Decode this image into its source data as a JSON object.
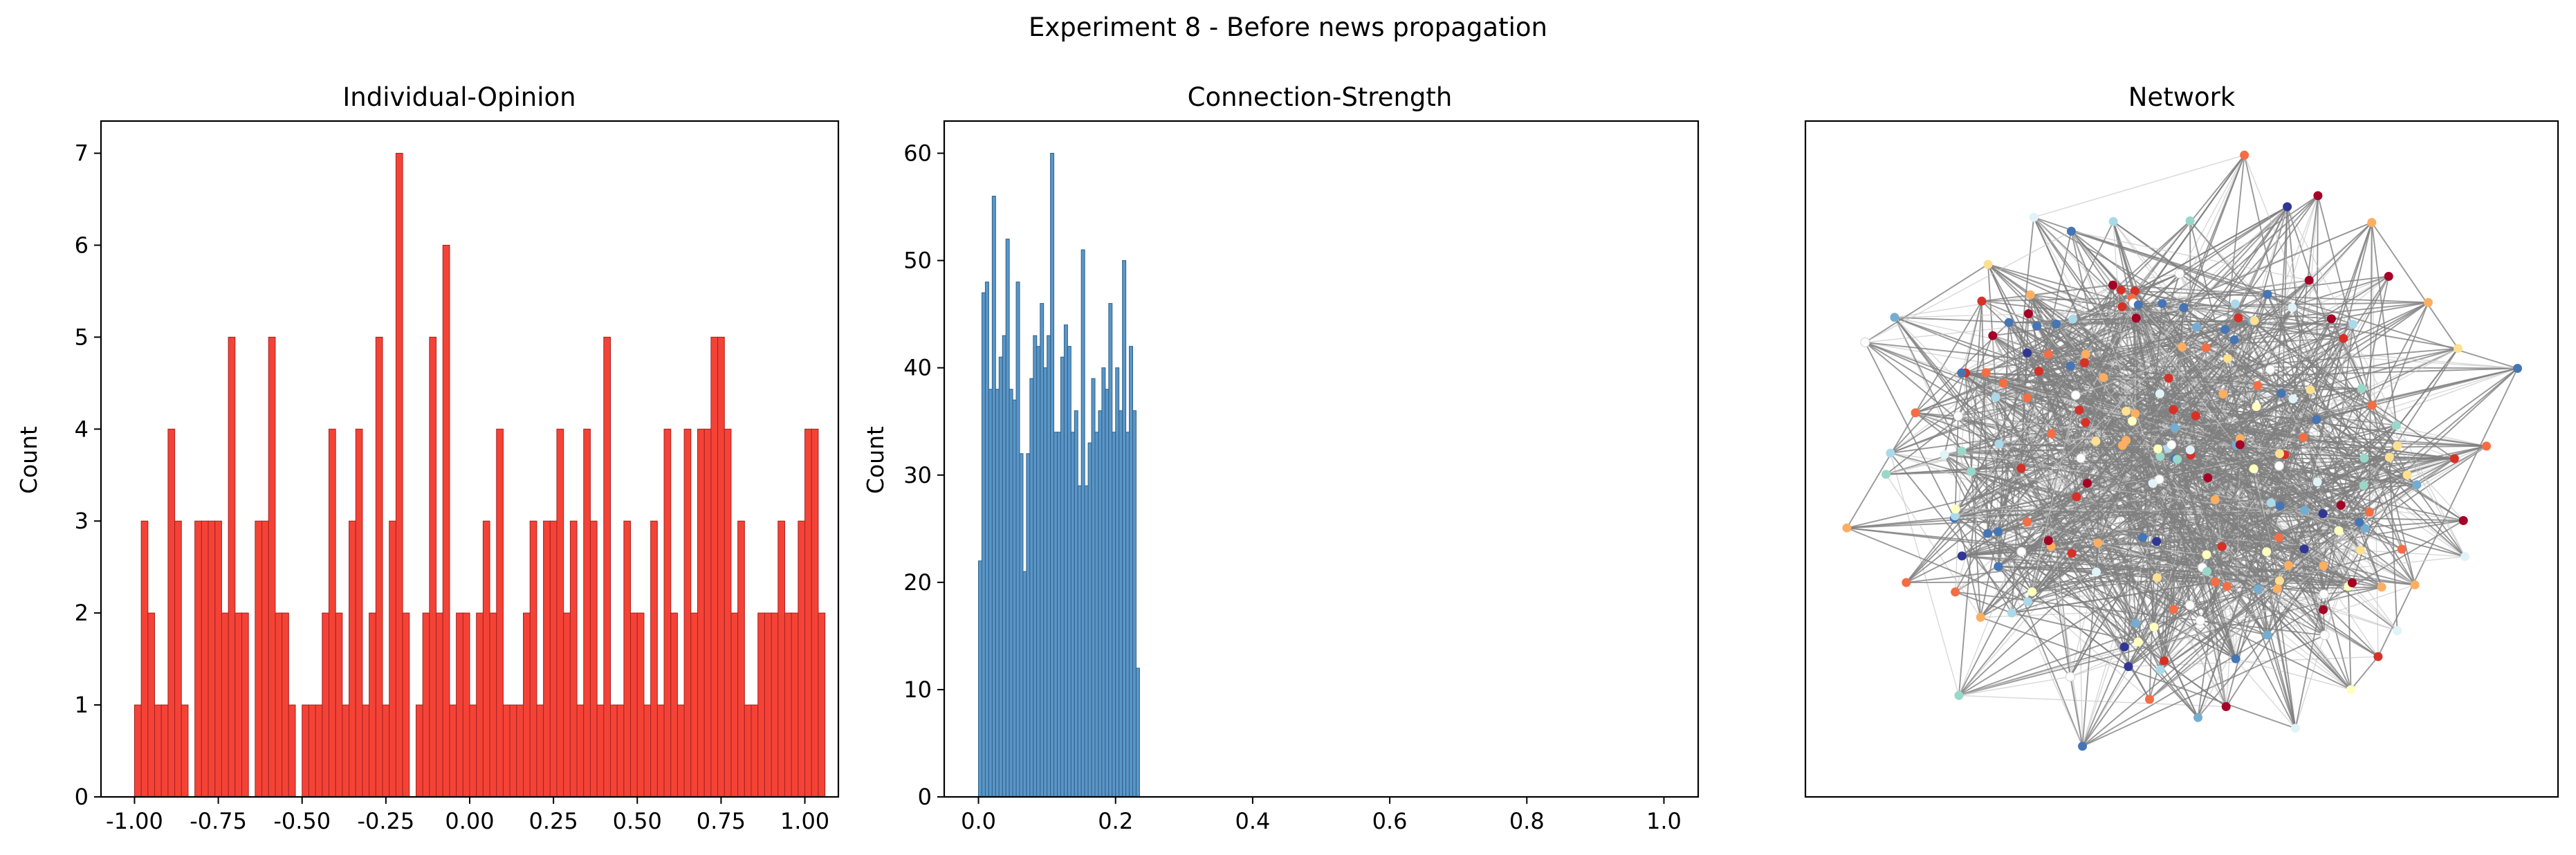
{
  "figure": {
    "title": "Experiment 8 - Before news propagation"
  },
  "chart_data": [
    {
      "type": "bar",
      "title": "Individual-Opinion",
      "xlabel": "",
      "ylabel": "Count",
      "xlim": [
        -1.1,
        1.1
      ],
      "ylim": [
        0,
        7.35
      ],
      "xticks": [
        "-1.00",
        "-0.75",
        "-0.50",
        "-0.25",
        "0.00",
        "0.25",
        "0.50",
        "0.75",
        "1.00"
      ],
      "xtick_values": [
        -1.0,
        -0.75,
        -0.5,
        -0.25,
        0.0,
        0.25,
        0.5,
        0.75,
        1.0
      ],
      "yticks": [
        "0",
        "1",
        "2",
        "3",
        "4",
        "5",
        "6",
        "7"
      ],
      "ytick_values": [
        0,
        1,
        2,
        3,
        4,
        5,
        6,
        7
      ],
      "bin_start": -1.0,
      "bin_width": 0.02,
      "values": [
        1,
        3,
        2,
        1,
        1,
        4,
        3,
        1,
        0,
        3,
        3,
        3,
        3,
        2,
        5,
        2,
        2,
        0,
        3,
        3,
        5,
        2,
        2,
        1,
        0,
        1,
        1,
        1,
        2,
        4,
        2,
        1,
        3,
        4,
        1,
        2,
        5,
        1,
        3,
        7,
        2,
        0,
        1,
        2,
        5,
        2,
        6,
        1,
        2,
        2,
        1,
        2,
        3,
        2,
        4,
        1,
        1,
        1,
        2,
        3,
        1,
        3,
        3,
        4,
        2,
        3,
        1,
        4,
        3,
        1,
        5,
        1,
        1,
        3,
        2,
        2,
        1,
        3,
        1,
        4,
        2,
        1,
        4,
        2,
        4,
        4,
        5,
        5,
        4,
        2,
        3,
        1,
        1,
        2,
        2,
        2,
        3,
        2,
        2,
        3,
        4,
        4,
        2
      ],
      "colors": {
        "fill": "#f44336",
        "edge": "#a52020"
      }
    },
    {
      "type": "bar",
      "title": "Connection-Strength",
      "xlabel": "",
      "ylabel": "Count",
      "xlim": [
        -0.05,
        1.05
      ],
      "ylim": [
        0,
        63
      ],
      "xticks": [
        "0.0",
        "0.2",
        "0.4",
        "0.6",
        "0.8",
        "1.0"
      ],
      "xtick_values": [
        0.0,
        0.2,
        0.4,
        0.6,
        0.8,
        1.0
      ],
      "yticks": [
        "0",
        "10",
        "20",
        "30",
        "40",
        "50",
        "60"
      ],
      "ytick_values": [
        0,
        10,
        20,
        30,
        40,
        50,
        60
      ],
      "bin_start": 0.0,
      "bin_width": 0.005,
      "values": [
        22,
        47,
        48,
        38,
        56,
        38,
        41,
        43,
        52,
        38,
        37,
        48,
        32,
        21,
        32,
        39,
        43,
        42,
        46,
        40,
        43,
        60,
        34,
        34,
        41,
        44,
        42,
        34,
        36,
        29,
        51,
        29,
        33,
        39,
        34,
        36,
        40,
        38,
        46,
        34,
        40,
        36,
        50,
        34,
        42,
        36,
        12
      ],
      "colors": {
        "fill": "#5a96c8",
        "edge": "#2f5f86"
      }
    },
    {
      "type": "network",
      "title": "Network",
      "node_count": 210,
      "edge_count": 1300,
      "node_colors": [
        "#d73027",
        "#f46d43",
        "#fdae61",
        "#fee090",
        "#ffffbf",
        "#e0f3f8",
        "#abd9e9",
        "#74add1",
        "#4575b4",
        "#a50026",
        "#313695",
        "#99d8c9",
        "#ffffff"
      ],
      "edge_color": "#808080"
    }
  ]
}
